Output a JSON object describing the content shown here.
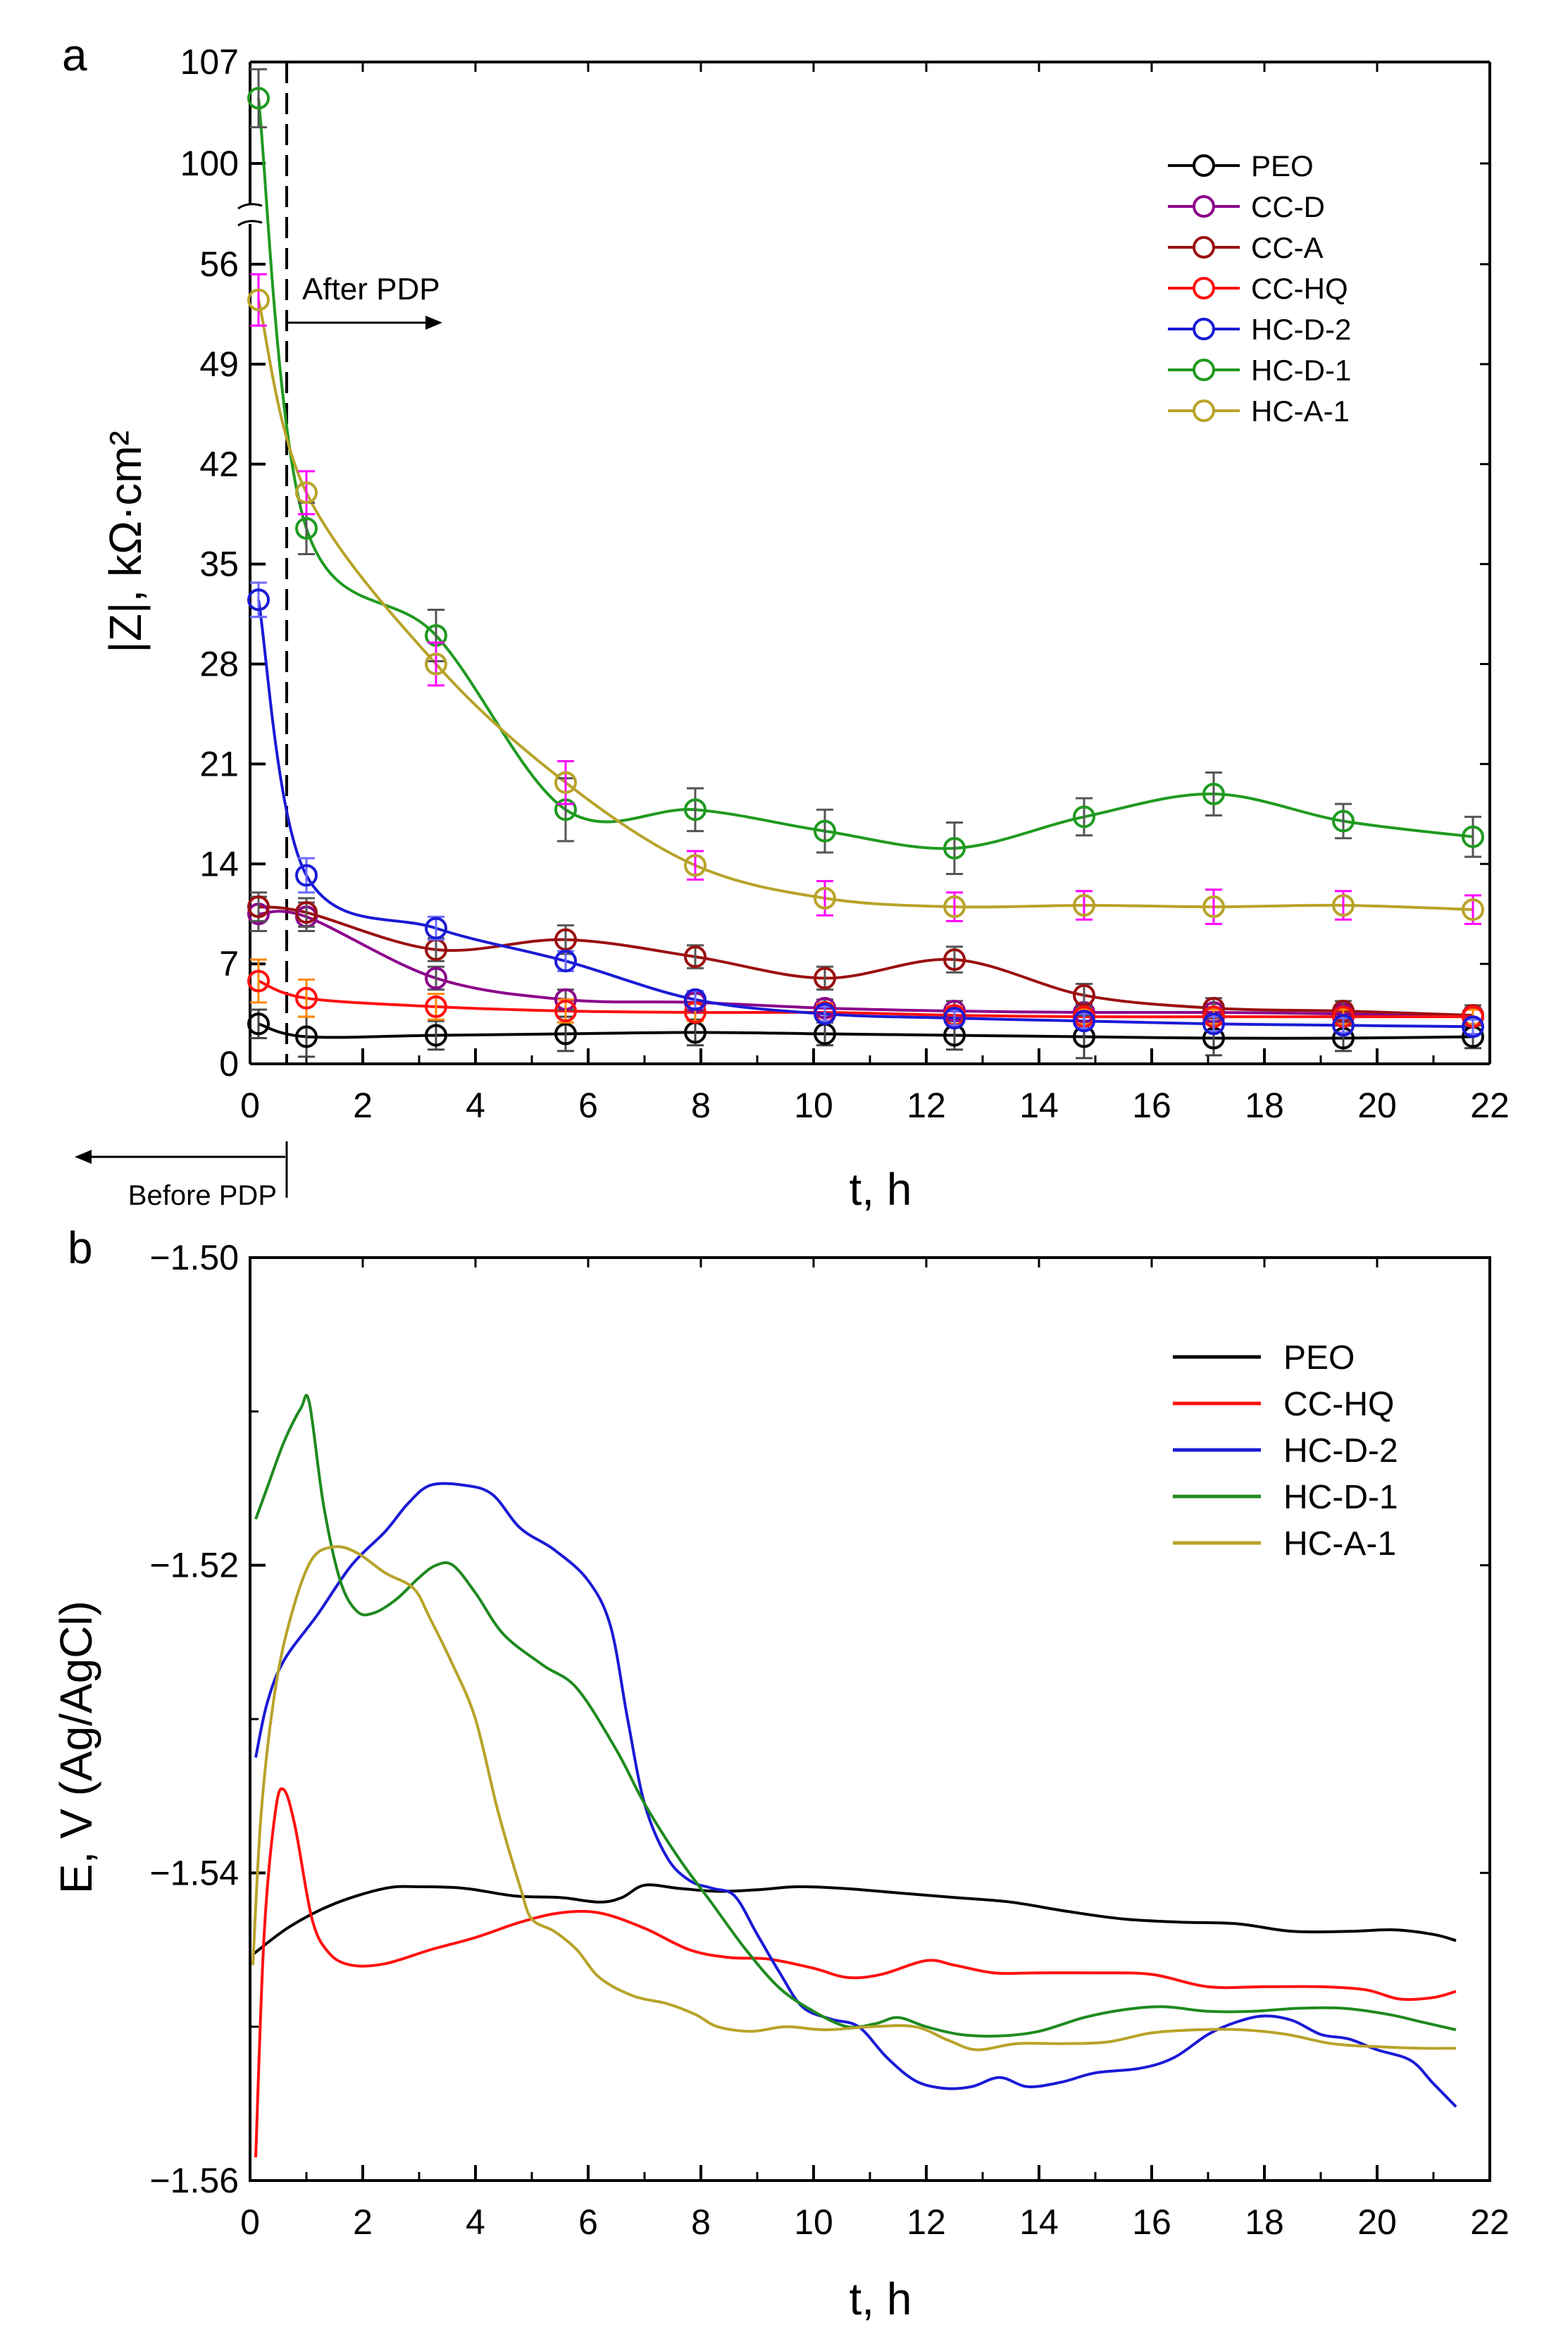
{
  "figure": {
    "panel_a_letter": "a",
    "panel_b_letter": "b",
    "letter_color": "#ff00ff"
  },
  "chart_data": [
    {
      "type": "line",
      "panel": "a",
      "title": "",
      "xlabel": "t, h",
      "ylabel": "|Z|, kΩ·cm²",
      "xlim": [
        0,
        22
      ],
      "ylim": [
        0,
        107
      ],
      "y_axis_break": [
        59,
        98
      ],
      "x_ticks": [
        "0",
        "2",
        "4",
        "6",
        "8",
        "10",
        "12",
        "14",
        "16",
        "18",
        "20",
        "22"
      ],
      "y_ticks": [
        "0",
        "7",
        "14",
        "21",
        "28",
        "35",
        "42",
        "49",
        "56",
        "100",
        "107"
      ],
      "marker": "open-circle",
      "error_bars": true,
      "annotations": {
        "after_label": "After PDP",
        "before_label": "Before PDP",
        "pdp_time": 0.65
      },
      "legend_position": "top-right",
      "x": [
        0.15,
        1.0,
        3.3,
        5.6,
        7.9,
        10.2,
        12.5,
        14.8,
        17.1,
        19.4,
        21.7
      ],
      "series": [
        {
          "name": "PEO",
          "color": "#000000",
          "err_color": "#444444",
          "values": [
            2.8,
            1.9,
            2.0,
            2.1,
            2.2,
            2.1,
            2.0,
            1.9,
            1.8,
            1.8,
            1.9
          ],
          "errors": [
            1.0,
            1.4,
            1.0,
            1.2,
            0.9,
            0.8,
            1.0,
            1.5,
            1.2,
            0.9,
            0.8
          ]
        },
        {
          "name": "CC-D",
          "color": "#8b008b",
          "err_color": "#555555",
          "values": [
            10.5,
            10.3,
            6.0,
            4.5,
            4.3,
            3.9,
            3.7,
            3.6,
            3.6,
            3.5,
            3.3
          ],
          "errors": [
            1.2,
            1.0,
            0.8,
            0.7,
            0.6,
            0.6,
            0.7,
            0.6,
            0.6,
            0.6,
            0.6
          ]
        },
        {
          "name": "CC-A",
          "color": "#9b1010",
          "err_color": "#555555",
          "values": [
            11.0,
            10.6,
            8.0,
            8.7,
            7.5,
            6.0,
            7.3,
            4.8,
            3.9,
            3.7,
            3.4
          ],
          "errors": [
            1.0,
            1.0,
            0.8,
            1.0,
            0.8,
            0.8,
            0.9,
            0.8,
            0.7,
            0.7,
            0.7
          ]
        },
        {
          "name": "CC-HQ",
          "color": "#ff1010",
          "err_color": "#ff8800",
          "values": [
            5.8,
            4.6,
            4.0,
            3.7,
            3.6,
            3.6,
            3.4,
            3.3,
            3.3,
            3.3,
            3.3
          ],
          "errors": [
            1.5,
            1.3,
            0.9,
            0.8,
            0.6,
            0.6,
            0.6,
            0.5,
            0.5,
            0.5,
            0.5
          ]
        },
        {
          "name": "HC-D-2",
          "color": "#1a1ad6",
          "err_color": "#6a6aff",
          "values": [
            32.5,
            13.2,
            9.5,
            7.2,
            4.5,
            3.5,
            3.2,
            3.0,
            2.8,
            2.7,
            2.6
          ],
          "errors": [
            1.2,
            1.2,
            0.8,
            0.7,
            0.6,
            0.5,
            0.5,
            0.5,
            0.5,
            0.5,
            0.5
          ]
        },
        {
          "name": "HC-D-1",
          "color": "#1f9a1f",
          "err_color": "#555555",
          "values": [
            104.5,
            37.5,
            30.0,
            17.8,
            17.8,
            16.3,
            15.1,
            17.3,
            18.9,
            17.0,
            15.9
          ],
          "errors": [
            2.0,
            1.8,
            1.8,
            2.2,
            1.5,
            1.5,
            1.8,
            1.3,
            1.5,
            1.2,
            1.4
          ]
        },
        {
          "name": "HC-A-1",
          "color": "#b8a32a",
          "err_color": "#ff00ff",
          "values": [
            53.5,
            40.0,
            28.0,
            19.7,
            13.9,
            11.6,
            11.0,
            11.1,
            11.0,
            11.1,
            10.8
          ],
          "errors": [
            1.8,
            1.5,
            1.5,
            1.5,
            1.0,
            1.2,
            1.0,
            1.0,
            1.2,
            1.0,
            1.0
          ]
        }
      ]
    },
    {
      "type": "line",
      "panel": "b",
      "title": "",
      "xlabel": "t, h",
      "ylabel": "E, V (Ag/AgCl)",
      "xlim": [
        0,
        22
      ],
      "ylim": [
        -1.56,
        -1.5
      ],
      "x_ticks": [
        "0",
        "2",
        "4",
        "6",
        "8",
        "10",
        "12",
        "14",
        "16",
        "18",
        "20",
        "22"
      ],
      "y_ticks": [
        "−1.50",
        "−1.52",
        "−1.54",
        "−1.56"
      ],
      "legend_position": "top-right",
      "series": [
        {
          "name": "PEO",
          "color": "#000000",
          "points": [
            [
              0.05,
              -1.5453
            ],
            [
              0.7,
              -1.5435
            ],
            [
              1.5,
              -1.542
            ],
            [
              2.4,
              -1.541
            ],
            [
              3.0,
              -1.5409
            ],
            [
              3.8,
              -1.541
            ],
            [
              4.7,
              -1.5415
            ],
            [
              5.5,
              -1.5416
            ],
            [
              6.2,
              -1.5419
            ],
            [
              6.6,
              -1.5416
            ],
            [
              7.0,
              -1.5408
            ],
            [
              7.6,
              -1.541
            ],
            [
              8.3,
              -1.5412
            ],
            [
              9.0,
              -1.5411
            ],
            [
              9.7,
              -1.5409
            ],
            [
              10.5,
              -1.541
            ],
            [
              11.5,
              -1.5413
            ],
            [
              12.5,
              -1.5416
            ],
            [
              13.5,
              -1.5419
            ],
            [
              14.5,
              -1.5425
            ],
            [
              15.5,
              -1.543
            ],
            [
              16.5,
              -1.5432
            ],
            [
              17.5,
              -1.5433
            ],
            [
              18.5,
              -1.5438
            ],
            [
              19.5,
              -1.5438
            ],
            [
              20.3,
              -1.5437
            ],
            [
              21.0,
              -1.544
            ],
            [
              21.4,
              -1.5444
            ]
          ]
        },
        {
          "name": "CC-HQ",
          "color": "#ff1010",
          "points": [
            [
              0.1,
              -1.5585
            ],
            [
              0.25,
              -1.544
            ],
            [
              0.45,
              -1.536
            ],
            [
              0.6,
              -1.5346
            ],
            [
              0.8,
              -1.537
            ],
            [
              1.1,
              -1.543
            ],
            [
              1.4,
              -1.5452
            ],
            [
              1.8,
              -1.546
            ],
            [
              2.4,
              -1.5459
            ],
            [
              3.2,
              -1.545
            ],
            [
              4.0,
              -1.5442
            ],
            [
              4.8,
              -1.5432
            ],
            [
              5.5,
              -1.5426
            ],
            [
              6.2,
              -1.5426
            ],
            [
              7.0,
              -1.5436
            ],
            [
              7.8,
              -1.545
            ],
            [
              8.5,
              -1.5455
            ],
            [
              9.2,
              -1.5456
            ],
            [
              10.0,
              -1.5462
            ],
            [
              10.6,
              -1.5468
            ],
            [
              11.2,
              -1.5466
            ],
            [
              12.0,
              -1.5457
            ],
            [
              12.5,
              -1.546
            ],
            [
              13.2,
              -1.5465
            ],
            [
              14.0,
              -1.5465
            ],
            [
              15.0,
              -1.5465
            ],
            [
              16.0,
              -1.5466
            ],
            [
              17.0,
              -1.5474
            ],
            [
              18.0,
              -1.5474
            ],
            [
              19.0,
              -1.5474
            ],
            [
              19.8,
              -1.5476
            ],
            [
              20.4,
              -1.5482
            ],
            [
              21.0,
              -1.5481
            ],
            [
              21.4,
              -1.5477
            ]
          ]
        },
        {
          "name": "HC-D-2",
          "color": "#1a1ad6",
          "points": [
            [
              0.1,
              -1.5325
            ],
            [
              0.3,
              -1.529
            ],
            [
              0.6,
              -1.5262
            ],
            [
              1.2,
              -1.5232
            ],
            [
              1.8,
              -1.52
            ],
            [
              2.4,
              -1.5178
            ],
            [
              2.8,
              -1.516
            ],
            [
              3.2,
              -1.5148
            ],
            [
              3.8,
              -1.5148
            ],
            [
              4.3,
              -1.5154
            ],
            [
              4.8,
              -1.5176
            ],
            [
              5.4,
              -1.519
            ],
            [
              6.0,
              -1.521
            ],
            [
              6.4,
              -1.524
            ],
            [
              6.7,
              -1.53
            ],
            [
              7.0,
              -1.5355
            ],
            [
              7.4,
              -1.539
            ],
            [
              7.8,
              -1.5405
            ],
            [
              8.2,
              -1.541
            ],
            [
              8.6,
              -1.5415
            ],
            [
              9.0,
              -1.544
            ],
            [
              9.4,
              -1.5465
            ],
            [
              9.8,
              -1.5487
            ],
            [
              10.3,
              -1.5495
            ],
            [
              10.8,
              -1.55
            ],
            [
              11.3,
              -1.552
            ],
            [
              11.8,
              -1.5535
            ],
            [
              12.3,
              -1.554
            ],
            [
              12.8,
              -1.5539
            ],
            [
              13.3,
              -1.5533
            ],
            [
              13.8,
              -1.5539
            ],
            [
              14.4,
              -1.5536
            ],
            [
              15.0,
              -1.553
            ],
            [
              15.8,
              -1.5527
            ],
            [
              16.4,
              -1.552
            ],
            [
              17.0,
              -1.5505
            ],
            [
              17.5,
              -1.5497
            ],
            [
              18.0,
              -1.5493
            ],
            [
              18.5,
              -1.5496
            ],
            [
              19.0,
              -1.5505
            ],
            [
              19.5,
              -1.5508
            ],
            [
              20.0,
              -1.5515
            ],
            [
              20.6,
              -1.5522
            ],
            [
              21.0,
              -1.5537
            ],
            [
              21.4,
              -1.5552
            ]
          ]
        },
        {
          "name": "HC-D-1",
          "color": "#1f8a1f",
          "points": [
            [
              0.1,
              -1.517
            ],
            [
              0.3,
              -1.515
            ],
            [
              0.6,
              -1.512
            ],
            [
              0.9,
              -1.5098
            ],
            [
              1.05,
              -1.5094
            ],
            [
              1.3,
              -1.516
            ],
            [
              1.6,
              -1.521
            ],
            [
              1.9,
              -1.523
            ],
            [
              2.2,
              -1.5231
            ],
            [
              2.6,
              -1.5222
            ],
            [
              3.0,
              -1.5208
            ],
            [
              3.3,
              -1.52
            ],
            [
              3.6,
              -1.52
            ],
            [
              4.0,
              -1.5218
            ],
            [
              4.5,
              -1.5245
            ],
            [
              5.2,
              -1.5265
            ],
            [
              5.8,
              -1.528
            ],
            [
              6.5,
              -1.532
            ],
            [
              7.0,
              -1.5355
            ],
            [
              7.6,
              -1.539
            ],
            [
              8.2,
              -1.542
            ],
            [
              8.8,
              -1.545
            ],
            [
              9.4,
              -1.5475
            ],
            [
              10.0,
              -1.549
            ],
            [
              10.6,
              -1.55
            ],
            [
              11.1,
              -1.5498
            ],
            [
              11.5,
              -1.5494
            ],
            [
              12.0,
              -1.55
            ],
            [
              12.6,
              -1.5505
            ],
            [
              13.3,
              -1.5506
            ],
            [
              14.0,
              -1.5503
            ],
            [
              14.8,
              -1.5494
            ],
            [
              15.5,
              -1.5489
            ],
            [
              16.2,
              -1.5487
            ],
            [
              17.0,
              -1.549
            ],
            [
              17.8,
              -1.549
            ],
            [
              18.6,
              -1.5488
            ],
            [
              19.4,
              -1.5488
            ],
            [
              20.2,
              -1.5492
            ],
            [
              20.8,
              -1.5497
            ],
            [
              21.4,
              -1.5502
            ]
          ]
        },
        {
          "name": "HC-A-1",
          "color": "#b8a32a",
          "points": [
            [
              0.05,
              -1.546
            ],
            [
              0.2,
              -1.536
            ],
            [
              0.45,
              -1.528
            ],
            [
              0.75,
              -1.523
            ],
            [
              1.1,
              -1.5196
            ],
            [
              1.5,
              -1.5188
            ],
            [
              1.9,
              -1.5192
            ],
            [
              2.4,
              -1.5205
            ],
            [
              2.9,
              -1.5215
            ],
            [
              3.2,
              -1.5235
            ],
            [
              3.6,
              -1.5265
            ],
            [
              4.0,
              -1.53
            ],
            [
              4.4,
              -1.536
            ],
            [
              4.8,
              -1.541
            ],
            [
              5.0,
              -1.543
            ],
            [
              5.4,
              -1.5438
            ],
            [
              5.8,
              -1.545
            ],
            [
              6.2,
              -1.5468
            ],
            [
              6.8,
              -1.548
            ],
            [
              7.4,
              -1.5485
            ],
            [
              7.9,
              -1.5492
            ],
            [
              8.3,
              -1.55
            ],
            [
              8.9,
              -1.5503
            ],
            [
              9.5,
              -1.55
            ],
            [
              10.2,
              -1.5502
            ],
            [
              11.0,
              -1.55
            ],
            [
              11.8,
              -1.55
            ],
            [
              12.4,
              -1.5509
            ],
            [
              12.9,
              -1.5515
            ],
            [
              13.6,
              -1.5511
            ],
            [
              14.4,
              -1.5511
            ],
            [
              15.2,
              -1.551
            ],
            [
              16.0,
              -1.5504
            ],
            [
              16.8,
              -1.5502
            ],
            [
              17.6,
              -1.5502
            ],
            [
              18.4,
              -1.5505
            ],
            [
              19.2,
              -1.5511
            ],
            [
              20.0,
              -1.5513
            ],
            [
              20.8,
              -1.5514
            ],
            [
              21.4,
              -1.5514
            ]
          ]
        }
      ]
    }
  ]
}
